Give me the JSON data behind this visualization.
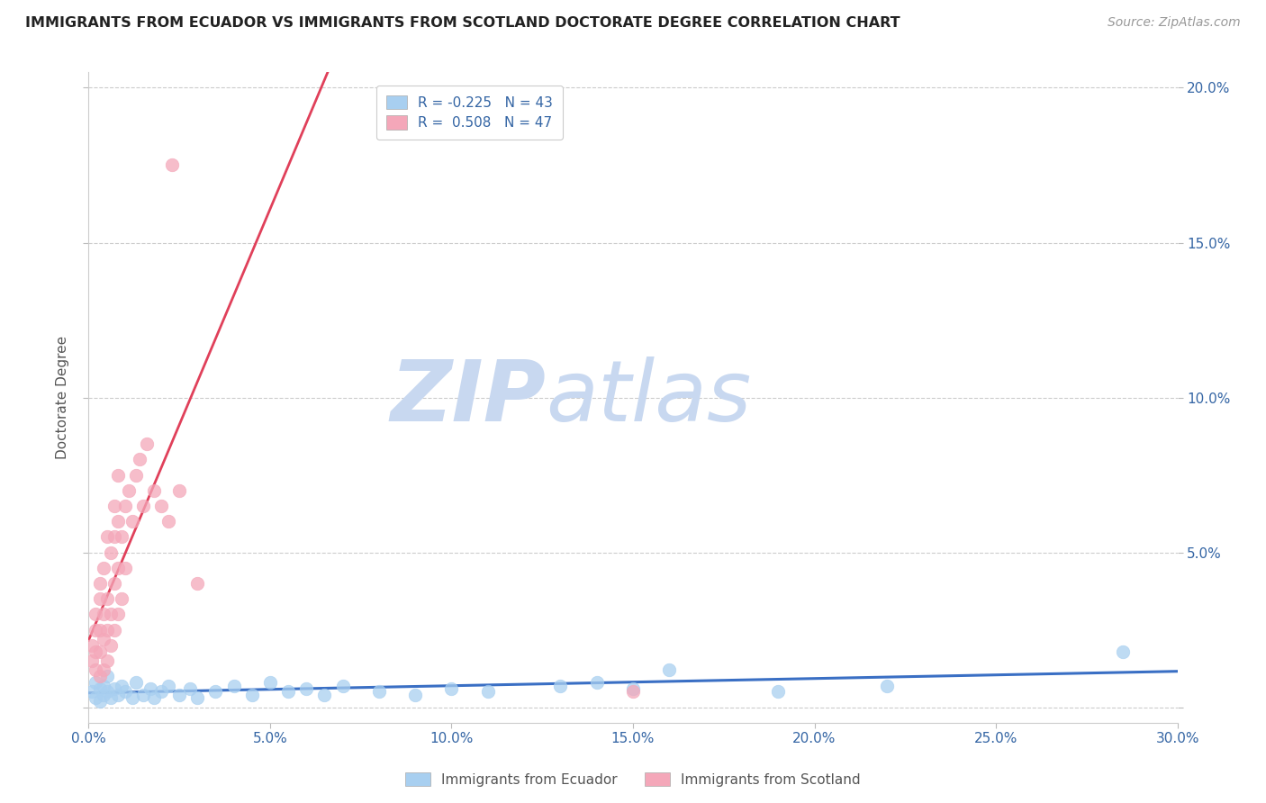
{
  "title": "IMMIGRANTS FROM ECUADOR VS IMMIGRANTS FROM SCOTLAND DOCTORATE DEGREE CORRELATION CHART",
  "source": "Source: ZipAtlas.com",
  "ylabel": "Doctorate Degree",
  "xlim": [
    0.0,
    0.3
  ],
  "ylim": [
    -0.005,
    0.205
  ],
  "xticks": [
    0.0,
    0.05,
    0.1,
    0.15,
    0.2,
    0.25,
    0.3
  ],
  "xtick_labels": [
    "0.0%",
    "5.0%",
    "10.0%",
    "15.0%",
    "20.0%",
    "25.0%",
    "30.0%"
  ],
  "yticks": [
    0.0,
    0.05,
    0.1,
    0.15,
    0.2
  ],
  "ytick_labels_right": [
    "",
    "5.0%",
    "10.0%",
    "15.0%",
    "20.0%"
  ],
  "ecuador_color": "#a8cff0",
  "scotland_color": "#f4a7b9",
  "ecuador_edge_color": "#7aafd4",
  "scotland_edge_color": "#e07090",
  "ecuador_line_color": "#3a6fc4",
  "scotland_line_color": "#e0405a",
  "scotland_dash_color": "#e8a0b0",
  "legend_R_color": "#3465a4",
  "watermark_zip": "ZIP",
  "watermark_atlas": "atlas",
  "watermark_color": "#c8d8f0",
  "background_color": "#ffffff",
  "grid_color": "#cccccc",
  "ecuador_R": -0.225,
  "ecuador_N": 43,
  "scotland_R": 0.508,
  "scotland_N": 47,
  "ecuador_x": [
    0.001,
    0.002,
    0.002,
    0.003,
    0.003,
    0.004,
    0.004,
    0.005,
    0.005,
    0.006,
    0.007,
    0.008,
    0.009,
    0.01,
    0.012,
    0.013,
    0.015,
    0.017,
    0.018,
    0.02,
    0.022,
    0.025,
    0.028,
    0.03,
    0.035,
    0.04,
    0.045,
    0.05,
    0.055,
    0.06,
    0.065,
    0.07,
    0.08,
    0.09,
    0.1,
    0.11,
    0.13,
    0.14,
    0.15,
    0.16,
    0.19,
    0.22,
    0.285
  ],
  "ecuador_y": [
    0.005,
    0.008,
    0.003,
    0.006,
    0.002,
    0.007,
    0.004,
    0.005,
    0.01,
    0.003,
    0.006,
    0.004,
    0.007,
    0.005,
    0.003,
    0.008,
    0.004,
    0.006,
    0.003,
    0.005,
    0.007,
    0.004,
    0.006,
    0.003,
    0.005,
    0.007,
    0.004,
    0.008,
    0.005,
    0.006,
    0.004,
    0.007,
    0.005,
    0.004,
    0.006,
    0.005,
    0.007,
    0.008,
    0.006,
    0.012,
    0.005,
    0.007,
    0.018
  ],
  "scotland_x": [
    0.001,
    0.001,
    0.002,
    0.002,
    0.002,
    0.002,
    0.003,
    0.003,
    0.003,
    0.003,
    0.003,
    0.004,
    0.004,
    0.004,
    0.004,
    0.005,
    0.005,
    0.005,
    0.005,
    0.006,
    0.006,
    0.006,
    0.007,
    0.007,
    0.007,
    0.007,
    0.008,
    0.008,
    0.008,
    0.008,
    0.009,
    0.009,
    0.01,
    0.01,
    0.011,
    0.012,
    0.013,
    0.014,
    0.015,
    0.016,
    0.018,
    0.02,
    0.022,
    0.025,
    0.03,
    0.023,
    0.15
  ],
  "scotland_y": [
    0.015,
    0.02,
    0.012,
    0.018,
    0.025,
    0.03,
    0.01,
    0.018,
    0.025,
    0.035,
    0.04,
    0.012,
    0.022,
    0.03,
    0.045,
    0.015,
    0.025,
    0.035,
    0.055,
    0.02,
    0.03,
    0.05,
    0.025,
    0.04,
    0.055,
    0.065,
    0.03,
    0.045,
    0.06,
    0.075,
    0.035,
    0.055,
    0.045,
    0.065,
    0.07,
    0.06,
    0.075,
    0.08,
    0.065,
    0.085,
    0.07,
    0.065,
    0.06,
    0.07,
    0.04,
    0.175,
    0.005
  ]
}
